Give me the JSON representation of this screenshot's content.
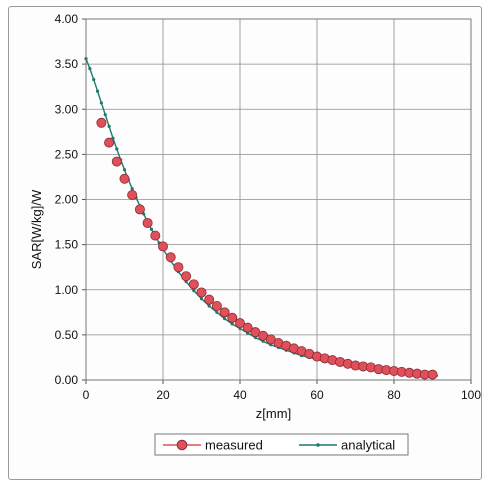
{
  "chart_data": {
    "type": "line",
    "title": "",
    "xlabel": "z[mm]",
    "ylabel": "SAR[W/kg]/W",
    "xlim": [
      0,
      100
    ],
    "ylim": [
      0,
      4.0
    ],
    "x_ticks": [
      "0",
      "20",
      "40",
      "60",
      "80",
      "100"
    ],
    "y_ticks": [
      "0.00",
      "0.50",
      "1.00",
      "1.50",
      "2.00",
      "2.50",
      "3.00",
      "3.50",
      "4.00"
    ],
    "grid": true,
    "legend_position": "bottom",
    "series": [
      {
        "name": "measured",
        "color": "#e0505a",
        "marker": "circle",
        "x": [
          4,
          6,
          8,
          10,
          12,
          14,
          16,
          18,
          20,
          22,
          24,
          26,
          28,
          30,
          32,
          34,
          36,
          38,
          40,
          42,
          44,
          46,
          48,
          50,
          52,
          54,
          56,
          58,
          60,
          62,
          64,
          66,
          68,
          70,
          72,
          74,
          76,
          78,
          80,
          82,
          84,
          86,
          88,
          90
        ],
        "y": [
          2.85,
          2.63,
          2.42,
          2.23,
          2.05,
          1.89,
          1.74,
          1.6,
          1.48,
          1.36,
          1.25,
          1.15,
          1.06,
          0.97,
          0.89,
          0.82,
          0.75,
          0.69,
          0.63,
          0.58,
          0.53,
          0.49,
          0.45,
          0.41,
          0.38,
          0.35,
          0.32,
          0.29,
          0.26,
          0.24,
          0.22,
          0.2,
          0.18,
          0.16,
          0.15,
          0.14,
          0.12,
          0.11,
          0.1,
          0.09,
          0.08,
          0.07,
          0.06,
          0.06
        ]
      },
      {
        "name": "analytical",
        "color": "#1f7a6e",
        "marker": "dot",
        "x": [
          0,
          1,
          2,
          3,
          4,
          5,
          6,
          7,
          8,
          9,
          10,
          11,
          12,
          13,
          14,
          15,
          16,
          17,
          18,
          19,
          20,
          22,
          24,
          26,
          28,
          30,
          32,
          34,
          36,
          38,
          40,
          42,
          44,
          46,
          48,
          50,
          52,
          54,
          56,
          58,
          60,
          62,
          64,
          66,
          68,
          70,
          72,
          74,
          76,
          78,
          80,
          82,
          84,
          86,
          88,
          90,
          91
        ],
        "y": [
          3.56,
          3.45,
          3.33,
          3.2,
          3.07,
          2.94,
          2.81,
          2.68,
          2.56,
          2.44,
          2.33,
          2.22,
          2.12,
          2.02,
          1.93,
          1.84,
          1.75,
          1.67,
          1.59,
          1.52,
          1.45,
          1.32,
          1.2,
          1.09,
          0.99,
          0.9,
          0.82,
          0.75,
          0.68,
          0.62,
          0.57,
          0.52,
          0.47,
          0.43,
          0.39,
          0.36,
          0.33,
          0.3,
          0.27,
          0.25,
          0.23,
          0.21,
          0.19,
          0.17,
          0.16,
          0.14,
          0.13,
          0.12,
          0.11,
          0.1,
          0.09,
          0.08,
          0.07,
          0.07,
          0.06,
          0.05,
          0.05
        ]
      }
    ]
  }
}
